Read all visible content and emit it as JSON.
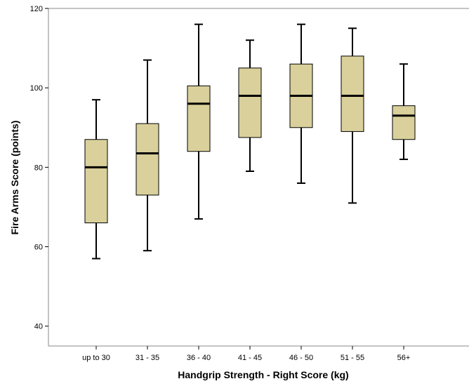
{
  "chart_data": {
    "type": "box",
    "title": "",
    "xlabel": "Handgrip Strength - Right Score (kg)",
    "ylabel": "Fire Arms Score (points)",
    "ylim": [
      35,
      120
    ],
    "yticks": [
      40,
      60,
      80,
      100,
      120
    ],
    "grid": false,
    "box_fill": "#d9d09b",
    "box_stroke": "#000000",
    "categories": [
      "up to 30",
      "31 - 35",
      "36 - 40",
      "41 - 45",
      "46 - 50",
      "51 - 55",
      "56+"
    ],
    "boxes": [
      {
        "min": 57,
        "q1": 66,
        "median": 80,
        "q3": 87,
        "max": 97
      },
      {
        "min": 59,
        "q1": 73,
        "median": 83.5,
        "q3": 91,
        "max": 107
      },
      {
        "min": 67,
        "q1": 84,
        "median": 96,
        "q3": 100.5,
        "max": 116
      },
      {
        "min": 79,
        "q1": 87.5,
        "median": 98,
        "q3": 105,
        "max": 112
      },
      {
        "min": 76,
        "q1": 90,
        "median": 98,
        "q3": 106,
        "max": 116
      },
      {
        "min": 71,
        "q1": 89,
        "median": 98,
        "q3": 108,
        "max": 115
      },
      {
        "min": 82,
        "q1": 87,
        "median": 93,
        "q3": 95.5,
        "max": 106
      }
    ]
  }
}
